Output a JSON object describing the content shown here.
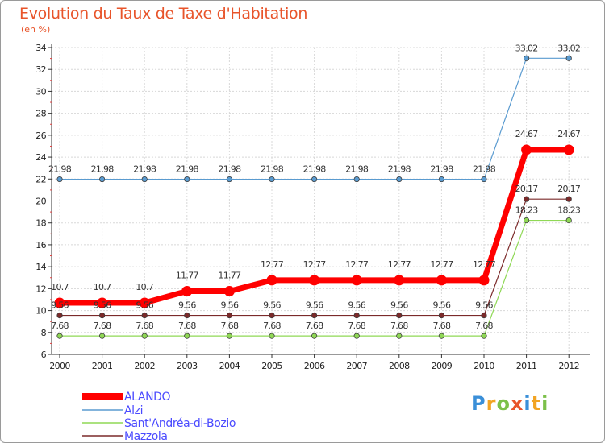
{
  "chart_data": {
    "type": "line",
    "title": "Evolution du Taux de Taxe d'Habitation",
    "subtitle": "(en %)",
    "x": [
      "2000",
      "2001",
      "2002",
      "2003",
      "2004",
      "2005",
      "2006",
      "2007",
      "2008",
      "2009",
      "2010",
      "2011",
      "2012"
    ],
    "ylim": [
      6,
      34
    ],
    "yticks": [
      6,
      8,
      10,
      12,
      14,
      16,
      18,
      20,
      22,
      24,
      26,
      28,
      30,
      32,
      34
    ],
    "grid": true,
    "legend_position": "bottom-left",
    "series": [
      {
        "name": "ALANDO",
        "color": "#ff0000",
        "values": [
          10.7,
          10.7,
          10.7,
          11.77,
          11.77,
          12.77,
          12.77,
          12.77,
          12.77,
          12.77,
          12.77,
          24.67,
          24.67
        ]
      },
      {
        "name": "Alzi",
        "color": "#5a9bd0",
        "values": [
          21.98,
          21.98,
          21.98,
          21.98,
          21.98,
          21.98,
          21.98,
          21.98,
          21.98,
          21.98,
          21.98,
          33.02,
          33.02
        ]
      },
      {
        "name": "Sant'Andréa-di-Bozio",
        "color": "#8fd855",
        "values": [
          7.68,
          7.68,
          7.68,
          7.68,
          7.68,
          7.68,
          7.68,
          7.68,
          7.68,
          7.68,
          7.68,
          18.23,
          18.23
        ]
      },
      {
        "name": "Mazzola",
        "color": "#7b2a2a",
        "values": [
          9.56,
          9.56,
          9.56,
          9.56,
          9.56,
          9.56,
          9.56,
          9.56,
          9.56,
          9.56,
          9.56,
          20.17,
          20.17
        ]
      }
    ]
  },
  "brand": {
    "letters": [
      "P",
      "r",
      "o",
      "x",
      "i",
      "t",
      "i"
    ]
  }
}
